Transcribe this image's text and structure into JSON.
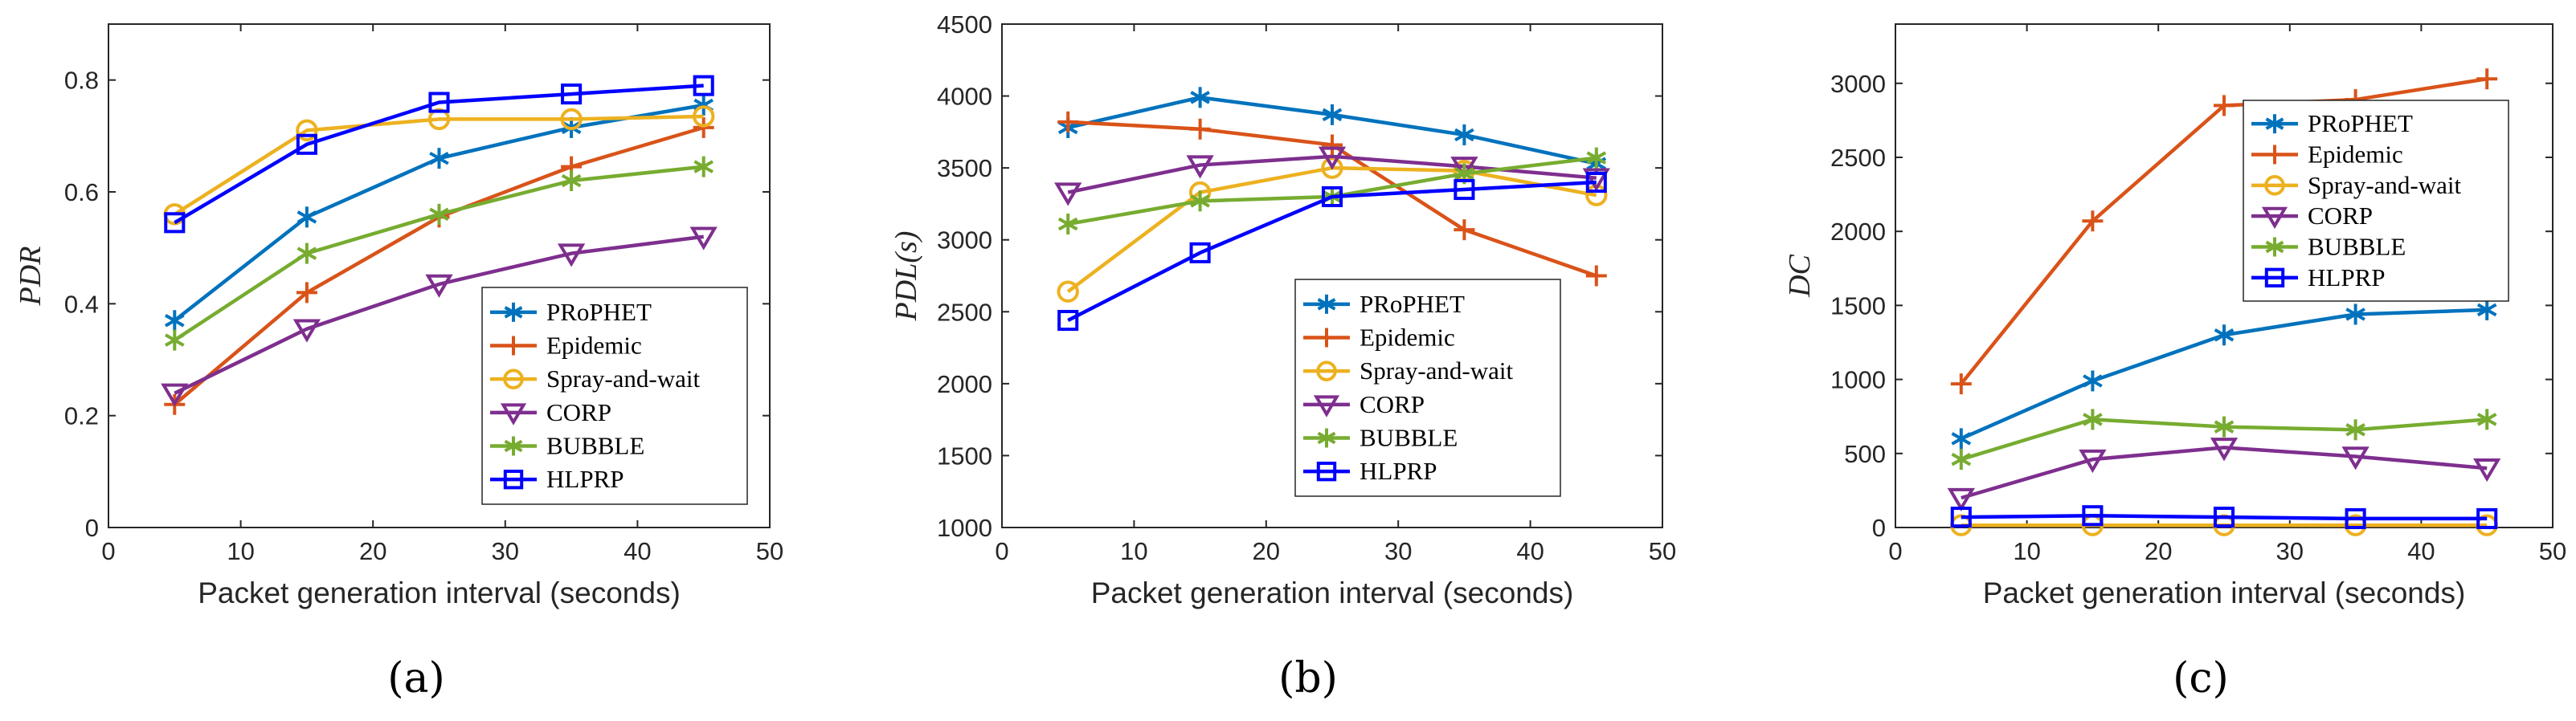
{
  "chart_data": [
    {
      "type": "line",
      "panel": "a",
      "caption": "(a)",
      "xlabel": "Packet generation interval (seconds)",
      "ylabel": "PDR",
      "xlim": [
        0,
        50
      ],
      "ylim": [
        0,
        0.9
      ],
      "xticks": [
        0,
        10,
        20,
        30,
        40,
        50
      ],
      "yticks": [
        0,
        0.2,
        0.4,
        0.6,
        0.8
      ],
      "ytick_labels": [
        "0",
        "0.2",
        "0.4",
        "0.6",
        "0.8"
      ],
      "legend": "bottom-right",
      "x": [
        5,
        15,
        25,
        35,
        45
      ],
      "series": [
        {
          "name": "PRoPHET",
          "color": "#0072BD",
          "marker": "asterisk",
          "values": [
            0.37,
            0.555,
            0.66,
            0.715,
            0.755
          ]
        },
        {
          "name": "Epidemic",
          "color": "#D95319",
          "marker": "plus",
          "values": [
            0.22,
            0.42,
            0.555,
            0.645,
            0.715
          ]
        },
        {
          "name": "Spray-and-wait",
          "color": "#EDB120",
          "marker": "circle",
          "values": [
            0.56,
            0.71,
            0.73,
            0.73,
            0.735
          ]
        },
        {
          "name": "CORP",
          "color": "#7E2F8E",
          "marker": "triangle-down",
          "values": [
            0.24,
            0.355,
            0.435,
            0.49,
            0.52
          ]
        },
        {
          "name": "BUBBLE",
          "color": "#77AC30",
          "marker": "asterisk",
          "values": [
            0.335,
            0.49,
            0.56,
            0.62,
            0.645
          ]
        },
        {
          "name": "HLPRP",
          "color": "#0000FF",
          "marker": "square",
          "values": [
            0.545,
            0.685,
            0.76,
            0.775,
            0.79
          ]
        }
      ]
    },
    {
      "type": "line",
      "panel": "b",
      "caption": "(b)",
      "xlabel": "Packet generation interval (seconds)",
      "ylabel": "PDL(s)",
      "xlim": [
        0,
        50
      ],
      "ylim": [
        1000,
        4500
      ],
      "xticks": [
        0,
        10,
        20,
        30,
        40,
        50
      ],
      "yticks": [
        1000,
        1500,
        2000,
        2500,
        3000,
        3500,
        4000,
        4500
      ],
      "ytick_labels": [
        "1000",
        "1500",
        "2000",
        "2500",
        "3000",
        "3500",
        "4000",
        "4500"
      ],
      "legend": "bottom-right",
      "x": [
        5,
        15,
        25,
        35,
        45
      ],
      "series": [
        {
          "name": "PRoPHET",
          "color": "#0072BD",
          "marker": "asterisk",
          "values": [
            3780,
            3990,
            3870,
            3730,
            3530
          ]
        },
        {
          "name": "Epidemic",
          "color": "#D95319",
          "marker": "plus",
          "values": [
            3820,
            3770,
            3660,
            3070,
            2750
          ]
        },
        {
          "name": "Spray-and-wait",
          "color": "#EDB120",
          "marker": "circle",
          "values": [
            2640,
            3330,
            3500,
            3480,
            3310
          ]
        },
        {
          "name": "CORP",
          "color": "#7E2F8E",
          "marker": "triangle-down",
          "values": [
            3330,
            3520,
            3580,
            3510,
            3430
          ]
        },
        {
          "name": "BUBBLE",
          "color": "#77AC30",
          "marker": "asterisk",
          "values": [
            3110,
            3270,
            3300,
            3460,
            3570
          ]
        },
        {
          "name": "HLPRP",
          "color": "#0000FF",
          "marker": "square",
          "values": [
            2440,
            2910,
            3300,
            3350,
            3400
          ]
        }
      ]
    },
    {
      "type": "line",
      "panel": "c",
      "caption": "(c)",
      "xlabel": "Packet generation interval (seconds)",
      "ylabel": "DC",
      "xlim": [
        0,
        50
      ],
      "ylim": [
        0,
        3400
      ],
      "xticks": [
        0,
        10,
        20,
        30,
        40,
        50
      ],
      "yticks": [
        0,
        500,
        1000,
        1500,
        2000,
        2500,
        3000
      ],
      "ytick_labels": [
        "0",
        "500",
        "1000",
        "1500",
        "2000",
        "2500",
        "3000"
      ],
      "legend": "top-left",
      "x": [
        5,
        15,
        25,
        35,
        45
      ],
      "series": [
        {
          "name": "PRoPHET",
          "color": "#0072BD",
          "marker": "asterisk",
          "values": [
            600,
            990,
            1300,
            1440,
            1470
          ]
        },
        {
          "name": "Epidemic",
          "color": "#D95319",
          "marker": "plus",
          "values": [
            970,
            2070,
            2850,
            2890,
            3030
          ]
        },
        {
          "name": "Spray-and-wait",
          "color": "#EDB120",
          "marker": "circle",
          "values": [
            15,
            15,
            15,
            15,
            15
          ]
        },
        {
          "name": "CORP",
          "color": "#7E2F8E",
          "marker": "triangle-down",
          "values": [
            200,
            460,
            540,
            480,
            400
          ]
        },
        {
          "name": "BUBBLE",
          "color": "#77AC30",
          "marker": "asterisk",
          "values": [
            460,
            730,
            680,
            660,
            730
          ]
        },
        {
          "name": "HLPRP",
          "color": "#0000FF",
          "marker": "square",
          "values": [
            70,
            80,
            70,
            60,
            60
          ]
        }
      ]
    }
  ]
}
